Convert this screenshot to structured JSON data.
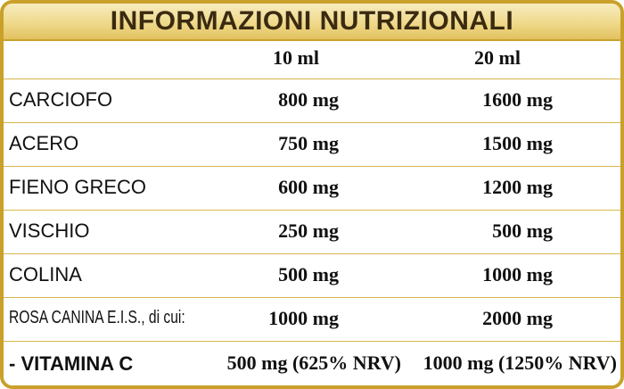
{
  "title": "INFORMAZIONI NUTRIZIONALI",
  "columns": [
    "10 ml",
    "20 ml"
  ],
  "rows": [
    {
      "name": "CARCIOFO",
      "v10": "800 mg",
      "v20": "1600 mg"
    },
    {
      "name": "ACERO",
      "v10": "750 mg",
      "v20": "1500 mg"
    },
    {
      "name": "FIENO GRECO",
      "v10": "600 mg",
      "v20": "1200 mg"
    },
    {
      "name": "VISCHIO",
      "v10": "250 mg",
      "v20": "500 mg"
    },
    {
      "name": "COLINA",
      "v10": "500 mg",
      "v20": "1000 mg"
    },
    {
      "name": "ROSA CANINA E.I.S., di cui:",
      "v10": "1000 mg",
      "v20": "2000 mg"
    },
    {
      "name": "- VITAMINA C",
      "v10": "500 mg (625% NRV)",
      "v20": "1000 mg (1250% NRV)"
    }
  ],
  "colors": {
    "border": "#c9a12a",
    "header_bg": "#efd98a",
    "text": "#111111"
  }
}
